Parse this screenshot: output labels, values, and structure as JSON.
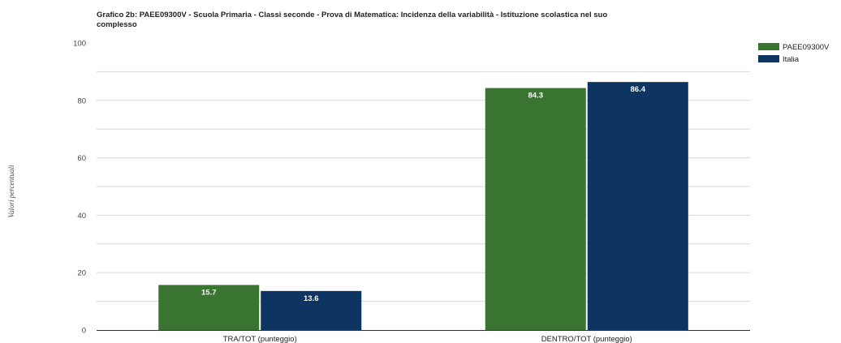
{
  "chart_data": {
    "type": "bar",
    "title_lines": [
      "Grafico 2b: PAEE09300V - Scuola Primaria - Classi seconde - Prova di Matematica: Incidenza della variabilità - Istituzione scolastica nel suo",
      "complesso"
    ],
    "xlabel": "",
    "ylabel": "Valori percentuali",
    "categories": [
      "TRA/TOT (punteggio)",
      "DENTRO/TOT (punteggio)"
    ],
    "series": [
      {
        "name": "PAEE09300V",
        "color": "#3a7431",
        "values": [
          15.7,
          84.3
        ]
      },
      {
        "name": "Italia",
        "color": "#0e3561",
        "values": [
          13.6,
          86.4
        ]
      }
    ],
    "ylim": [
      0,
      100
    ],
    "yticks": [
      0,
      20,
      40,
      60,
      80,
      100
    ],
    "grid": true,
    "legend": "top-right"
  }
}
